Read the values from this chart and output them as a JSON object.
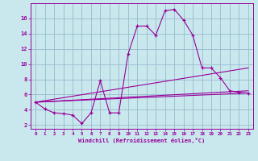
{
  "xlabel": "Windchill (Refroidissement éolien,°C)",
  "xlim": [
    -0.5,
    23.5
  ],
  "ylim": [
    1.5,
    18.0
  ],
  "xticks": [
    0,
    1,
    2,
    3,
    4,
    5,
    6,
    7,
    8,
    9,
    10,
    11,
    12,
    13,
    14,
    15,
    16,
    17,
    18,
    19,
    20,
    21,
    22,
    23
  ],
  "yticks": [
    2,
    4,
    6,
    8,
    10,
    12,
    14,
    16
  ],
  "background_color": "#c8e8ee",
  "line_color": "#990099",
  "grid_color": "#99bbcc",
  "main_line": {
    "x": [
      0,
      1,
      2,
      3,
      4,
      5,
      6,
      7,
      8,
      9,
      10,
      11,
      12,
      13,
      14,
      15,
      16,
      17,
      18,
      19,
      20,
      21,
      22,
      23
    ],
    "y": [
      5.0,
      4.1,
      3.6,
      3.5,
      3.3,
      2.2,
      3.6,
      7.8,
      3.6,
      3.6,
      11.3,
      15.0,
      15.0,
      13.8,
      17.0,
      17.2,
      15.8,
      13.8,
      9.5,
      9.5,
      8.2,
      6.5,
      6.3,
      6.2
    ]
  },
  "straight_lines": [
    {
      "x": [
        0,
        23
      ],
      "y": [
        5.0,
        6.2
      ]
    },
    {
      "x": [
        0,
        23
      ],
      "y": [
        5.0,
        6.5
      ]
    },
    {
      "x": [
        0,
        23
      ],
      "y": [
        5.0,
        9.5
      ]
    }
  ]
}
